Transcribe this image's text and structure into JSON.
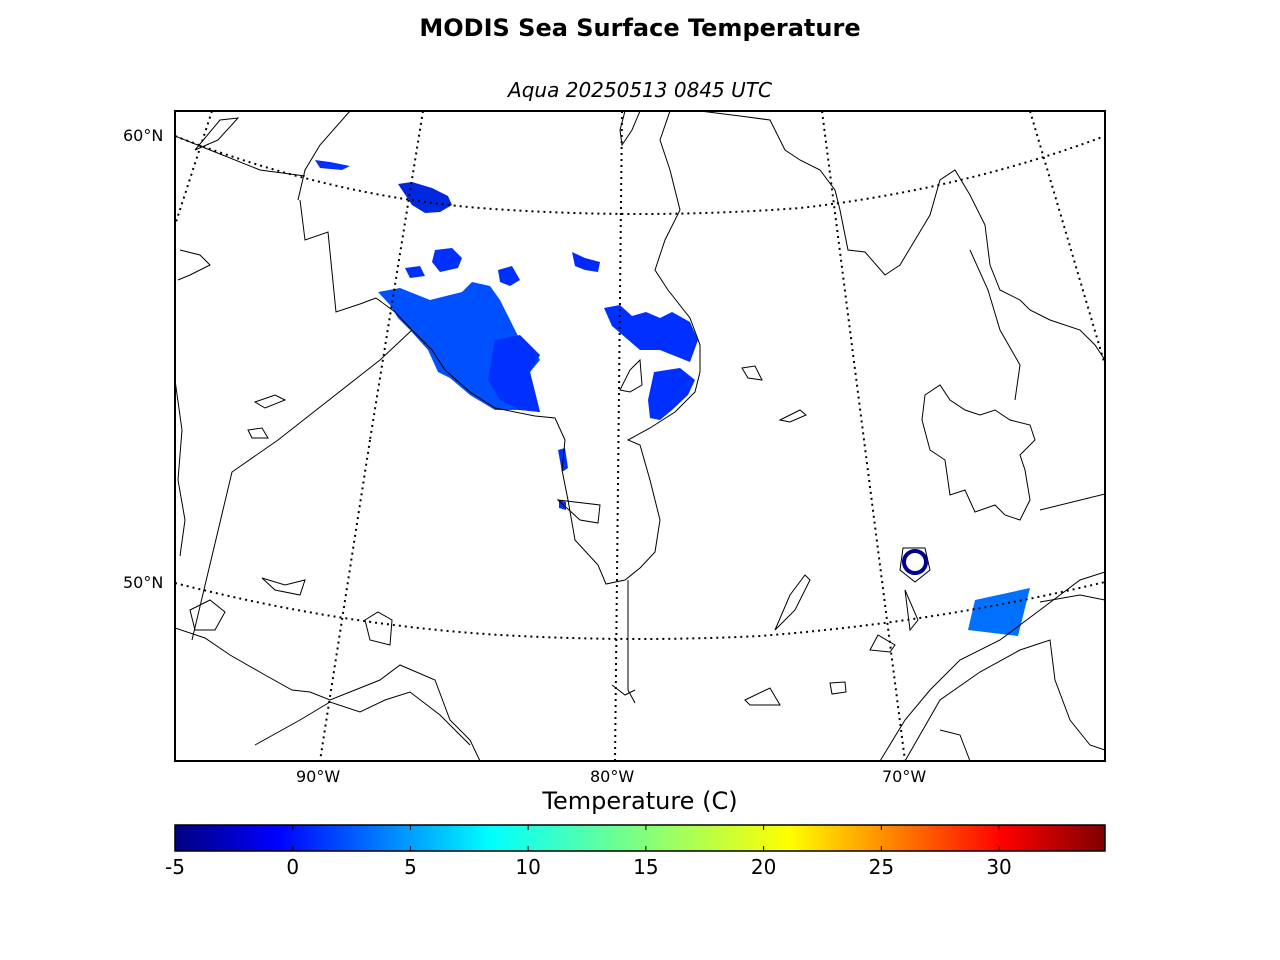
{
  "title": "MODIS Sea Surface Temperature",
  "subtitle": "Aqua 20250513 0845 UTC",
  "colorbar": {
    "label": "Temperature (C)",
    "min": -5,
    "max": 34.5,
    "ticks": [
      "-5",
      "0",
      "5",
      "10",
      "15",
      "20",
      "25",
      "30"
    ],
    "colormap": "jet"
  },
  "map": {
    "latitude_labels": [
      "60°N",
      "50°N"
    ],
    "longitude_labels": [
      "90°W",
      "80°W",
      "70°W"
    ],
    "region": "Hudson Bay / James Bay / Quebec-Labrador",
    "sst_colors": {
      "cold_dark": "#00008f",
      "mid_blue": "#0020ff",
      "water_blue": "#0050ff",
      "light_blue": "#0070ff"
    }
  }
}
